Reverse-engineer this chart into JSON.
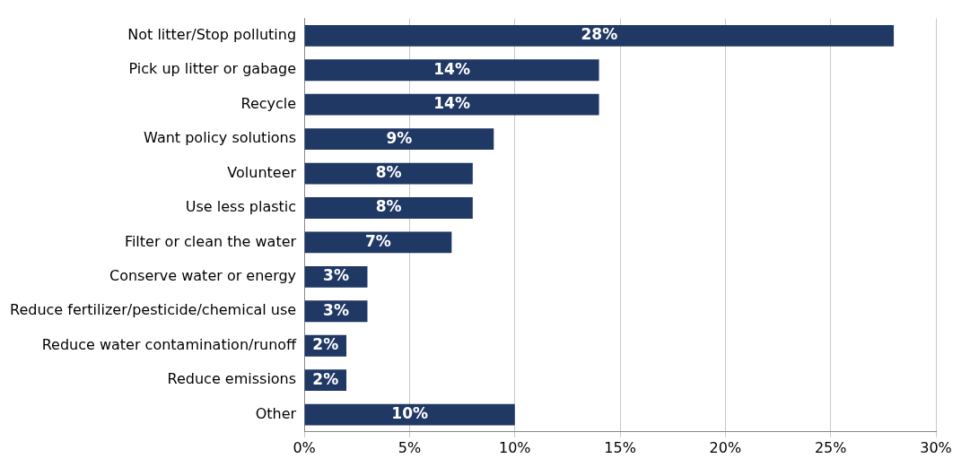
{
  "chart_data": {
    "type": "bar",
    "orientation": "horizontal",
    "categories": [
      "Not litter/Stop polluting",
      "Pick up litter or gabage",
      "Recycle",
      "Want policy solutions",
      "Volunteer",
      "Use less plastic",
      "Filter or clean the water",
      "Conserve water or energy",
      "Reduce fertilizer/pesticide/chemical use",
      "Reduce water contamination/runoff",
      "Reduce emissions",
      "Other"
    ],
    "values": [
      28,
      14,
      14,
      9,
      8,
      8,
      7,
      3,
      3,
      2,
      2,
      10
    ],
    "value_labels": [
      "28%",
      "14%",
      "14%",
      "9%",
      "8%",
      "8%",
      "7%",
      "3%",
      "3%",
      "2%",
      "2%",
      "10%"
    ],
    "color": "#1f3864",
    "xlim": [
      0,
      30
    ],
    "xticks": [
      {
        "value": 0,
        "label": "0%"
      },
      {
        "value": 5,
        "label": "5%"
      },
      {
        "value": 10,
        "label": "10%"
      },
      {
        "value": 15,
        "label": "15%"
      },
      {
        "value": 20,
        "label": "20%"
      },
      {
        "value": 25,
        "label": "25%"
      },
      {
        "value": 30,
        "label": "30%"
      }
    ],
    "grid": "x",
    "legend": false
  }
}
